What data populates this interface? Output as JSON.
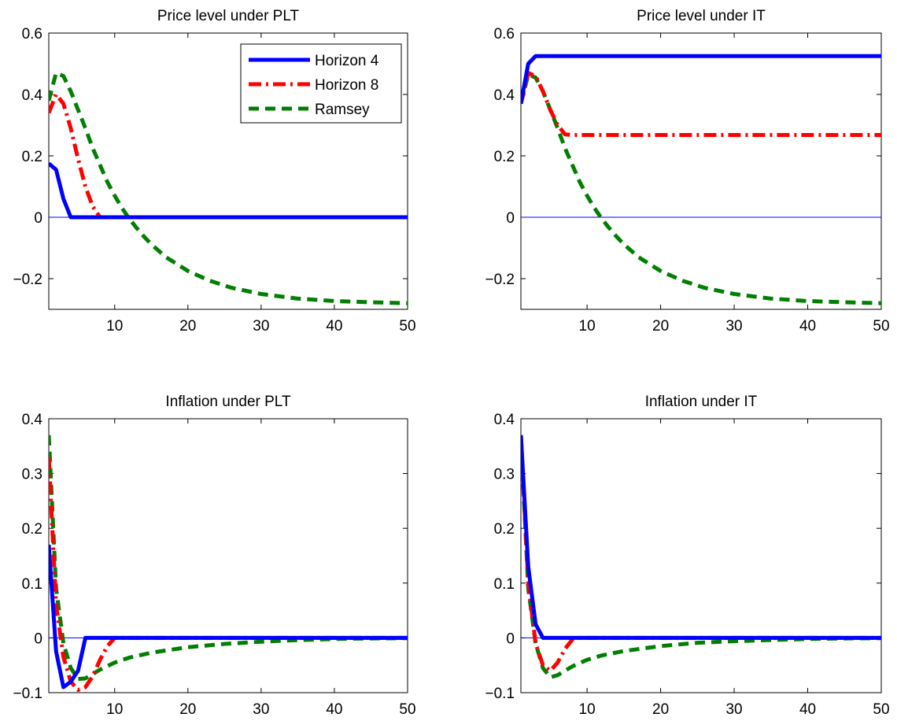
{
  "chart_data": [
    {
      "type": "line",
      "title": "Price level under PLT",
      "xlim": [
        1,
        50
      ],
      "ylim": [
        -0.3,
        0.6
      ],
      "xticks": [
        "10",
        "20",
        "30",
        "40",
        "50"
      ],
      "xtick_values": [
        10,
        20,
        30,
        40,
        50
      ],
      "yticks": [
        "0.6",
        "0.4",
        "0.2",
        "0",
        "−0.2"
      ],
      "ytick_values": [
        0.6,
        0.4,
        0.2,
        0,
        -0.2
      ],
      "zero_line": true,
      "legend": {
        "placement": "top-right",
        "entries": [
          "Horizon 4",
          "Horizon 8",
          "Ramsey"
        ]
      },
      "series": [
        {
          "name": "Horizon 4",
          "color": "#0000ff",
          "style": "solid",
          "points": [
            [
              1,
              0.175
            ],
            [
              2,
              0.155
            ],
            [
              3,
              0.06
            ],
            [
              4,
              0.0
            ],
            [
              6,
              0.0
            ],
            [
              50,
              0.0
            ]
          ]
        },
        {
          "name": "Horizon 8",
          "color": "#ff0000",
          "style": "dashdot",
          "points": [
            [
              1,
              0.34
            ],
            [
              2,
              0.4
            ],
            [
              3,
              0.37
            ],
            [
              4,
              0.29
            ],
            [
              5,
              0.19
            ],
            [
              6,
              0.1
            ],
            [
              7,
              0.035
            ],
            [
              8,
              0.0
            ],
            [
              10,
              0.0
            ],
            [
              50,
              0.0
            ]
          ]
        },
        {
          "name": "Ramsey",
          "color": "#007f00",
          "style": "dashed",
          "points": [
            [
              1,
              0.38
            ],
            [
              2,
              0.47
            ],
            [
              3,
              0.46
            ],
            [
              4,
              0.41
            ],
            [
              5,
              0.35
            ],
            [
              6,
              0.29
            ],
            [
              7,
              0.225
            ],
            [
              8,
              0.17
            ],
            [
              9,
              0.115
            ],
            [
              10,
              0.07
            ],
            [
              11,
              0.03
            ],
            [
              12,
              -0.005
            ],
            [
              13,
              -0.035
            ],
            [
              14,
              -0.063
            ],
            [
              15,
              -0.088
            ],
            [
              17,
              -0.13
            ],
            [
              20,
              -0.175
            ],
            [
              23,
              -0.207
            ],
            [
              26,
              -0.23
            ],
            [
              30,
              -0.25
            ],
            [
              35,
              -0.265
            ],
            [
              40,
              -0.273
            ],
            [
              45,
              -0.277
            ],
            [
              50,
              -0.28
            ]
          ]
        }
      ]
    },
    {
      "type": "line",
      "title": "Price level under IT",
      "xlim": [
        1,
        50
      ],
      "ylim": [
        -0.3,
        0.6
      ],
      "xticks": [
        "10",
        "20",
        "30",
        "40",
        "50"
      ],
      "xtick_values": [
        10,
        20,
        30,
        40,
        50
      ],
      "yticks": [
        "0.6",
        "0.4",
        "0.2",
        "0",
        "−0.2"
      ],
      "ytick_values": [
        0.6,
        0.4,
        0.2,
        0,
        -0.2
      ],
      "zero_line": true,
      "series": [
        {
          "name": "Horizon 4",
          "color": "#0000ff",
          "style": "solid",
          "points": [
            [
              1,
              0.37
            ],
            [
              2,
              0.5
            ],
            [
              3,
              0.525
            ],
            [
              4,
              0.525
            ],
            [
              50,
              0.525
            ]
          ]
        },
        {
          "name": "Horizon 8",
          "color": "#ff0000",
          "style": "dashdot",
          "points": [
            [
              1,
              0.37
            ],
            [
              2,
              0.47
            ],
            [
              3,
              0.46
            ],
            [
              4,
              0.41
            ],
            [
              5,
              0.35
            ],
            [
              6,
              0.3
            ],
            [
              7,
              0.27
            ],
            [
              8,
              0.268
            ],
            [
              50,
              0.268
            ]
          ]
        },
        {
          "name": "Ramsey",
          "color": "#007f00",
          "style": "dashed",
          "points": [
            [
              1,
              0.37
            ],
            [
              2,
              0.465
            ],
            [
              3,
              0.455
            ],
            [
              4,
              0.41
            ],
            [
              5,
              0.35
            ],
            [
              6,
              0.29
            ],
            [
              7,
              0.225
            ],
            [
              8,
              0.17
            ],
            [
              9,
              0.115
            ],
            [
              10,
              0.07
            ],
            [
              11,
              0.03
            ],
            [
              12,
              -0.005
            ],
            [
              13,
              -0.035
            ],
            [
              14,
              -0.063
            ],
            [
              15,
              -0.088
            ],
            [
              17,
              -0.13
            ],
            [
              20,
              -0.175
            ],
            [
              23,
              -0.207
            ],
            [
              26,
              -0.23
            ],
            [
              30,
              -0.25
            ],
            [
              35,
              -0.265
            ],
            [
              40,
              -0.273
            ],
            [
              45,
              -0.277
            ],
            [
              50,
              -0.28
            ]
          ]
        }
      ]
    },
    {
      "type": "line",
      "title": "Inflation under PLT",
      "xlim": [
        1,
        50
      ],
      "ylim": [
        -0.1,
        0.4
      ],
      "xticks": [
        "10",
        "20",
        "30",
        "40",
        "50"
      ],
      "xtick_values": [
        10,
        20,
        30,
        40,
        50
      ],
      "yticks": [
        "0.4",
        "0.3",
        "0.2",
        "0.1",
        "0",
        "−0.1"
      ],
      "ytick_values": [
        0.4,
        0.3,
        0.2,
        0.1,
        0,
        -0.1
      ],
      "zero_line": true,
      "series": [
        {
          "name": "Horizon 4",
          "color": "#0000ff",
          "style": "solid",
          "points": [
            [
              1,
              0.17
            ],
            [
              2,
              -0.025
            ],
            [
              3,
              -0.09
            ],
            [
              4,
              -0.08
            ],
            [
              5,
              -0.06
            ],
            [
              6,
              0.0
            ],
            [
              50,
              0.0
            ]
          ]
        },
        {
          "name": "Horizon 8",
          "color": "#ff0000",
          "style": "dashdot",
          "points": [
            [
              1,
              0.33
            ],
            [
              2,
              0.06
            ],
            [
              3,
              -0.035
            ],
            [
              4,
              -0.08
            ],
            [
              5,
              -0.095
            ],
            [
              6,
              -0.09
            ],
            [
              7,
              -0.07
            ],
            [
              8,
              -0.04
            ],
            [
              9,
              -0.015
            ],
            [
              10,
              0.0
            ],
            [
              50,
              0.0
            ]
          ]
        },
        {
          "name": "Ramsey",
          "color": "#007f00",
          "style": "dashed",
          "points": [
            [
              1,
              0.37
            ],
            [
              2,
              0.09
            ],
            [
              3,
              -0.01
            ],
            [
              4,
              -0.055
            ],
            [
              5,
              -0.075
            ],
            [
              6,
              -0.074
            ],
            [
              7,
              -0.066
            ],
            [
              8,
              -0.058
            ],
            [
              10,
              -0.045
            ],
            [
              12,
              -0.036
            ],
            [
              15,
              -0.027
            ],
            [
              20,
              -0.017
            ],
            [
              25,
              -0.011
            ],
            [
              30,
              -0.007
            ],
            [
              35,
              -0.004
            ],
            [
              40,
              -0.002
            ],
            [
              45,
              -0.001
            ],
            [
              50,
              -0.0005
            ]
          ]
        }
      ]
    },
    {
      "type": "line",
      "title": "Inflation under IT",
      "xlim": [
        1,
        50
      ],
      "ylim": [
        -0.1,
        0.4
      ],
      "xticks": [
        "10",
        "20",
        "30",
        "40",
        "50"
      ],
      "xtick_values": [
        10,
        20,
        30,
        40,
        50
      ],
      "yticks": [
        "0.4",
        "0.3",
        "0.2",
        "0.1",
        "0",
        "−0.1"
      ],
      "ytick_values": [
        0.4,
        0.3,
        0.2,
        0.1,
        0,
        -0.1
      ],
      "zero_line": true,
      "series": [
        {
          "name": "Horizon 4",
          "color": "#0000ff",
          "style": "solid",
          "points": [
            [
              1,
              0.37
            ],
            [
              2,
              0.13
            ],
            [
              3,
              0.025
            ],
            [
              4,
              0.0
            ],
            [
              50,
              0.0
            ]
          ]
        },
        {
          "name": "Horizon 8",
          "color": "#ff0000",
          "style": "dashdot",
          "points": [
            [
              1,
              0.37
            ],
            [
              2,
              0.1
            ],
            [
              3,
              -0.01
            ],
            [
              4,
              -0.05
            ],
            [
              5,
              -0.06
            ],
            [
              6,
              -0.045
            ],
            [
              7,
              -0.02
            ],
            [
              8,
              -0.003
            ],
            [
              9,
              0.0
            ],
            [
              50,
              0.0
            ]
          ]
        },
        {
          "name": "Ramsey",
          "color": "#007f00",
          "style": "dashed",
          "points": [
            [
              1,
              0.37
            ],
            [
              2,
              0.09
            ],
            [
              3,
              -0.01
            ],
            [
              4,
              -0.055
            ],
            [
              5,
              -0.072
            ],
            [
              6,
              -0.068
            ],
            [
              7,
              -0.06
            ],
            [
              8,
              -0.052
            ],
            [
              10,
              -0.04
            ],
            [
              12,
              -0.032
            ],
            [
              15,
              -0.024
            ],
            [
              20,
              -0.015
            ],
            [
              25,
              -0.009
            ],
            [
              30,
              -0.006
            ],
            [
              35,
              -0.004
            ],
            [
              40,
              -0.002
            ],
            [
              45,
              -0.001
            ],
            [
              50,
              -0.0005
            ]
          ]
        }
      ]
    }
  ]
}
